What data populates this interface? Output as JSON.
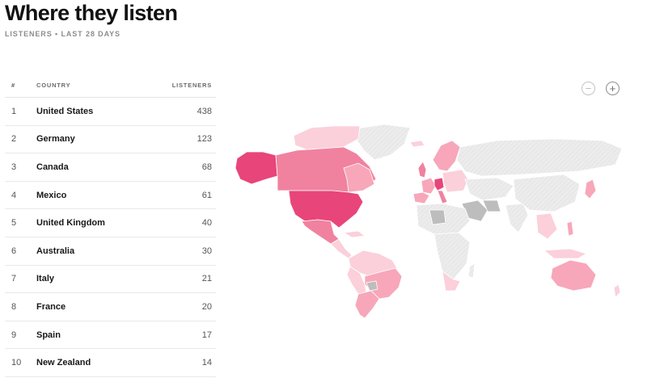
{
  "header": {
    "title": "Where they listen",
    "subtitle": "LISTENERS • LAST 28 DAYS"
  },
  "table": {
    "columns": {
      "rank": "#",
      "country": "COUNTRY",
      "listeners": "LISTENERS"
    },
    "rows": [
      {
        "rank": "1",
        "country": "United States",
        "listeners": "438"
      },
      {
        "rank": "2",
        "country": "Germany",
        "listeners": "123"
      },
      {
        "rank": "3",
        "country": "Canada",
        "listeners": "68"
      },
      {
        "rank": "4",
        "country": "Mexico",
        "listeners": "61"
      },
      {
        "rank": "5",
        "country": "United Kingdom",
        "listeners": "40"
      },
      {
        "rank": "6",
        "country": "Australia",
        "listeners": "30"
      },
      {
        "rank": "7",
        "country": "Italy",
        "listeners": "21"
      },
      {
        "rank": "8",
        "country": "France",
        "listeners": "20"
      },
      {
        "rank": "9",
        "country": "Spain",
        "listeners": "17"
      },
      {
        "rank": "10",
        "country": "New Zealand",
        "listeners": "14"
      }
    ]
  },
  "map": {
    "zoom_out_symbol": "−",
    "zoom_in_symbol": "+",
    "colors": {
      "highest": "#e8457a",
      "high": "#f0829f",
      "medium": "#f7a7b9",
      "low": "#fbd0da",
      "no_data": "#e4e4e4",
      "unavailable": "#bdbdbd",
      "border": "#ffffff"
    }
  }
}
